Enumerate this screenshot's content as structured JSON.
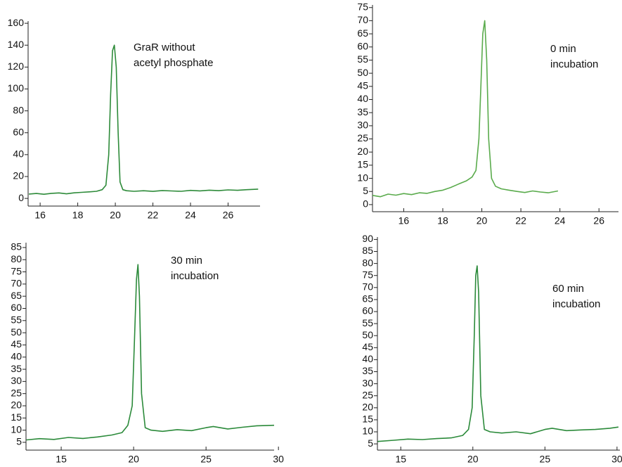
{
  "chart_data": [
    {
      "type": "line",
      "annotation": [
        "GraR without",
        "acetyl phosphate"
      ],
      "color": "#2e8b3a",
      "x": [
        15.4,
        15.8,
        16.2,
        16.6,
        17,
        17.4,
        17.8,
        18.2,
        18.6,
        19,
        19.3,
        19.5,
        19.65,
        19.75,
        19.85,
        19.95,
        20.05,
        20.15,
        20.25,
        20.4,
        20.6,
        21,
        21.5,
        22,
        22.5,
        23,
        23.5,
        24,
        24.5,
        25,
        25.5,
        26,
        26.5,
        27,
        27.6
      ],
      "values": [
        4,
        4.5,
        3.8,
        4.6,
        5,
        4.2,
        5.1,
        5.5,
        6,
        6.5,
        8,
        12,
        40,
        95,
        135,
        140,
        120,
        60,
        15,
        8,
        7,
        6.5,
        7,
        6.4,
        7.2,
        6.8,
        6.5,
        7.3,
        6.9,
        7.5,
        7.1,
        7.8,
        7.4,
        8,
        8.5
      ],
      "xlim": [
        15.36,
        27.7
      ],
      "ylim": [
        -7,
        162
      ],
      "xticks": [
        16,
        18,
        20,
        22,
        24,
        26
      ],
      "yticks": [
        0,
        20,
        40,
        60,
        80,
        100,
        120,
        140,
        160
      ]
    },
    {
      "type": "line",
      "annotation": [
        "0 min",
        "incubation"
      ],
      "color": "#5aab4c",
      "x": [
        14.4,
        14.8,
        15.2,
        15.6,
        16,
        16.4,
        16.8,
        17.2,
        17.6,
        18,
        18.4,
        18.8,
        19.2,
        19.5,
        19.7,
        19.85,
        19.95,
        20.05,
        20.15,
        20.25,
        20.35,
        20.5,
        20.7,
        21,
        21.4,
        21.8,
        22.2,
        22.6,
        23,
        23.4,
        23.9
      ],
      "values": [
        3.5,
        3,
        4,
        3.6,
        4.2,
        3.8,
        4.5,
        4.3,
        5,
        5.5,
        6.5,
        7.8,
        9,
        10.5,
        13,
        25,
        45,
        65,
        70,
        55,
        25,
        10,
        7,
        6,
        5.5,
        5,
        4.6,
        5.2,
        4.8,
        4.5,
        5.2
      ],
      "xlim": [
        14.4,
        27.0
      ],
      "ylim": [
        -2.7,
        76
      ],
      "xticks": [
        16,
        18,
        20,
        22,
        24,
        26
      ],
      "yticks": [
        0,
        5,
        10,
        15,
        20,
        25,
        30,
        35,
        40,
        45,
        50,
        55,
        60,
        65,
        70,
        75
      ]
    },
    {
      "type": "line",
      "annotation": [
        "30 min",
        "incubation"
      ],
      "color": "#2b8a3a",
      "x": [
        12.6,
        13.5,
        14.5,
        15.5,
        16.5,
        17.5,
        18.5,
        19.2,
        19.6,
        19.9,
        20.05,
        20.2,
        20.3,
        20.4,
        20.55,
        20.8,
        21.2,
        22,
        23,
        24,
        25,
        25.5,
        26.5,
        27.5,
        28.5,
        29.7
      ],
      "values": [
        6,
        6.5,
        6.2,
        7,
        6.6,
        7.2,
        8,
        9,
        12,
        20,
        45,
        72,
        78,
        65,
        25,
        11,
        10,
        9.5,
        10.2,
        9.8,
        11,
        11.5,
        10.5,
        11.2,
        11.8,
        12
      ],
      "xlim": [
        12.57,
        29.7
      ],
      "ylim": [
        1.8,
        87
      ],
      "xticks": [
        15,
        20,
        25,
        30
      ],
      "yticks": [
        5,
        10,
        15,
        20,
        25,
        30,
        35,
        40,
        45,
        50,
        55,
        60,
        65,
        70,
        75,
        80,
        85
      ]
    },
    {
      "type": "line",
      "annotation": [
        "60 min",
        "incubation"
      ],
      "color": "#2b8a3a",
      "x": [
        13.4,
        14.5,
        15.5,
        16.5,
        17.5,
        18.5,
        19.3,
        19.7,
        19.95,
        20.1,
        20.2,
        20.3,
        20.4,
        20.55,
        20.8,
        21.2,
        22,
        23,
        24,
        25,
        25.5,
        26.5,
        27.5,
        28.5,
        29.5,
        30.1
      ],
      "values": [
        6,
        6.5,
        7,
        6.8,
        7.2,
        7.5,
        8.5,
        11,
        20,
        50,
        75,
        79,
        68,
        25,
        11,
        10,
        9.5,
        10,
        9.2,
        11,
        11.5,
        10.5,
        10.8,
        11,
        11.5,
        12
      ],
      "xlim": [
        13.38,
        30.2
      ],
      "ylim": [
        2.4,
        91
      ],
      "xticks": [
        15,
        20,
        25,
        30
      ],
      "yticks": [
        5,
        10,
        15,
        20,
        25,
        30,
        35,
        40,
        45,
        50,
        55,
        60,
        65,
        70,
        75,
        80,
        85,
        90
      ]
    }
  ]
}
